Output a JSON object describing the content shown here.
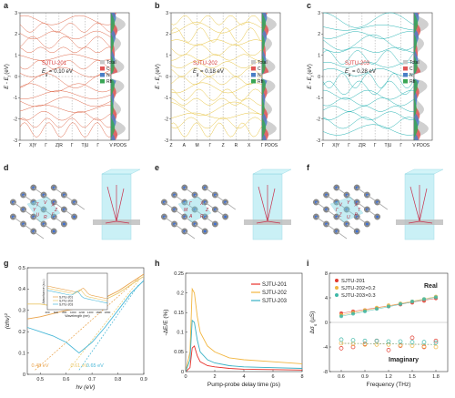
{
  "panels": {
    "a": {
      "label": "a",
      "sample": "SJTU-201",
      "gap": "E",
      "gap_sub": "g",
      "gap_value": " = 0.10 eV",
      "ylabel": "E - E",
      "ylabel_sub": "f",
      "ylabel_unit": " (eV)",
      "kpoints": [
        "Γ",
        "X|Y",
        "Γ",
        "Z|R",
        "Γ",
        "T|U",
        "Γ",
        "V"
      ],
      "pdos": "PDOS",
      "legend": [
        "Total",
        "C",
        "N",
        "Rh"
      ],
      "color": "#e06a4c"
    },
    "b": {
      "label": "b",
      "sample": "SJTU-202",
      "gap": "E",
      "gap_sub": "g",
      "gap_value": " = 0.18 eV",
      "ylabel": "E - E",
      "ylabel_sub": "f",
      "ylabel_unit": " (eV)",
      "kpoints": [
        "Z",
        "A",
        "M",
        "Γ",
        "Z",
        "R",
        "X",
        "Γ"
      ],
      "pdos": "PDOS",
      "legend": [
        "Total",
        "C",
        "N",
        "Rh"
      ],
      "color": "#e8c440"
    },
    "c": {
      "label": "c",
      "sample": "SJTU-203",
      "gap": "E",
      "gap_sub": "g",
      "gap_value": " = 0.28 eV",
      "ylabel": "E - E",
      "ylabel_sub": "f",
      "ylabel_unit": " (eV)",
      "kpoints": [
        "Γ",
        "X|Y",
        "Γ",
        "Z|R",
        "Γ",
        "T|U",
        "Γ",
        "V"
      ],
      "pdos": "PDOS",
      "legend": [
        "Total",
        "C",
        "N",
        "Rh"
      ],
      "color": "#28b4b4"
    },
    "d": {
      "label": "d",
      "kpts": [
        "Z",
        "Γ",
        "R",
        "U",
        "Y",
        "T",
        "V",
        "X"
      ]
    },
    "e": {
      "label": "e",
      "kpts": [
        "Z",
        "R",
        "A",
        "M",
        "Γ",
        "X"
      ]
    },
    "f": {
      "label": "f",
      "kpts": [
        "T",
        "R",
        "U",
        "Z",
        "Γ",
        "V",
        "Y",
        "X"
      ]
    },
    "g": {
      "label": "g",
      "ylabel": "(αhν)",
      "ylabel_sup": "2",
      "xlabel": "hν (eV)",
      "onsets": [
        "0.48 eV",
        "0.61 eV",
        "0.65 eV"
      ],
      "inset_ylabel": "Absorbance (a.u.)",
      "inset_xlabel": "Wavelength (nm)",
      "inset_xticks": [
        "400",
        "600",
        "800",
        "1000",
        "1200",
        "1400",
        "1600",
        "1800"
      ]
    },
    "h": {
      "label": "h",
      "ylabel": "-ΔE/E (%)",
      "xlabel": "Pump-probe delay time (ps)"
    },
    "i": {
      "label": "i",
      "ylabel": "Δσ",
      "ylabel_sub": "s",
      "ylabel_unit": " (µS)",
      "xlabel": "Frequency (THz)",
      "real": "Real",
      "imaginary": "Imaginary"
    }
  },
  "chart_data": [
    {
      "panel": "a",
      "type": "line",
      "title": "",
      "xlabel": "",
      "ylabel": "E - Ef (eV)",
      "ylim": [
        -3,
        3
      ],
      "yticks": [
        -3,
        -2,
        -1,
        0,
        1,
        2,
        3
      ],
      "grid": false
    },
    {
      "panel": "b",
      "type": "line",
      "title": "",
      "xlabel": "",
      "ylabel": "E - Ef (eV)",
      "ylim": [
        -3,
        3
      ],
      "yticks": [
        -3,
        -2,
        -1,
        0,
        1,
        2,
        3
      ],
      "grid": false
    },
    {
      "panel": "c",
      "type": "line",
      "title": "",
      "xlabel": "",
      "ylabel": "E - Ef (eV)",
      "ylim": [
        -3,
        3
      ],
      "yticks": [
        -3,
        -2,
        -1,
        0,
        1,
        2,
        3
      ],
      "grid": false
    },
    {
      "panel": "g",
      "type": "line",
      "title": "",
      "xlabel": "hν (eV)",
      "ylabel": "(αhν)2",
      "xlim": [
        0.45,
        0.9
      ],
      "ylim": [
        0,
        0.5
      ],
      "xticks": [
        0.5,
        0.6,
        0.7,
        0.8,
        0.9
      ],
      "yticks": [
        0.0,
        0.1,
        0.2,
        0.3,
        0.4,
        0.5
      ],
      "series": [
        {
          "name": "SJTU-201",
          "color": "#e9a24a",
          "onset": 0.48,
          "x": [
            0.45,
            0.5,
            0.55,
            0.6,
            0.65,
            0.7,
            0.75,
            0.8,
            0.85,
            0.9
          ],
          "y": [
            0.26,
            0.27,
            0.285,
            0.3,
            0.31,
            0.33,
            0.36,
            0.39,
            0.43,
            0.47
          ]
        },
        {
          "name": "SJTU-202",
          "color": "#e9c86a",
          "onset": 0.61,
          "x": [
            0.45,
            0.5,
            0.55,
            0.6,
            0.65,
            0.7,
            0.75,
            0.8,
            0.85,
            0.9
          ],
          "y": [
            0.33,
            0.33,
            0.32,
            0.32,
            0.32,
            0.33,
            0.35,
            0.38,
            0.42,
            0.46
          ]
        },
        {
          "name": "SJTU-203",
          "color": "#4ab8d8",
          "onset": 0.65,
          "x": [
            0.45,
            0.5,
            0.55,
            0.6,
            0.65,
            0.7,
            0.75,
            0.8,
            0.85,
            0.9
          ],
          "y": [
            0.22,
            0.2,
            0.18,
            0.15,
            0.1,
            0.15,
            0.22,
            0.3,
            0.38,
            0.44
          ]
        }
      ]
    },
    {
      "panel": "h",
      "type": "line",
      "title": "",
      "xlabel": "Pump-probe delay time (ps)",
      "ylabel": "-ΔE/E (%)",
      "xlim": [
        0,
        8
      ],
      "ylim": [
        0,
        0.25
      ],
      "xticks": [
        0,
        2,
        4,
        6,
        8
      ],
      "yticks": [
        0.0,
        0.05,
        0.1,
        0.15,
        0.2,
        0.25
      ],
      "legend": "top-right",
      "series": [
        {
          "name": "SJTU-201",
          "color": "#e8312a",
          "x": [
            0,
            0.3,
            0.45,
            0.6,
            0.8,
            1.0,
            1.5,
            2,
            3,
            4,
            6,
            8
          ],
          "y": [
            0,
            0.01,
            0.06,
            0.065,
            0.04,
            0.025,
            0.015,
            0.012,
            0.008,
            0.006,
            0.005,
            0.004
          ]
        },
        {
          "name": "SJTU-202",
          "color": "#f2b640",
          "x": [
            0,
            0.3,
            0.45,
            0.6,
            0.8,
            1.0,
            1.5,
            2,
            3,
            4,
            6,
            8
          ],
          "y": [
            0,
            0.05,
            0.21,
            0.2,
            0.14,
            0.1,
            0.065,
            0.05,
            0.035,
            0.03,
            0.025,
            0.02
          ]
        },
        {
          "name": "SJTU-203",
          "color": "#37b1c5",
          "x": [
            0,
            0.3,
            0.45,
            0.6,
            0.8,
            1.0,
            1.5,
            2,
            3,
            4,
            6,
            8
          ],
          "y": [
            0,
            0.03,
            0.13,
            0.125,
            0.08,
            0.05,
            0.03,
            0.022,
            0.015,
            0.012,
            0.01,
            0.008
          ]
        }
      ]
    },
    {
      "panel": "i",
      "type": "scatter",
      "title": "",
      "xlabel": "Frequency (THz)",
      "ylabel": "Δσs (µS)",
      "xlim": [
        0.45,
        1.95
      ],
      "ylim": [
        -8,
        8
      ],
      "xticks": [
        0.6,
        0.9,
        1.2,
        1.5,
        1.8
      ],
      "yticks": [
        -8,
        -4,
        0,
        4,
        8
      ],
      "legend": "top-left",
      "series": [
        {
          "name": "SJTU-201",
          "color": "#e23a2e",
          "x": [
            0.6,
            0.75,
            0.9,
            1.05,
            1.2,
            1.35,
            1.5,
            1.65,
            1.8
          ],
          "real": [
            1.5,
            1.8,
            2.0,
            2.3,
            2.6,
            2.9,
            3.2,
            3.5,
            3.9
          ],
          "imag": [
            -4.2,
            -4.0,
            -3.5,
            -3.0,
            -4.5,
            -3.8,
            -2.5,
            -4.0,
            -3.0
          ]
        },
        {
          "name": "SJTU-202×0.2",
          "color": "#f0b540",
          "x": [
            0.6,
            0.75,
            0.9,
            1.05,
            1.2,
            1.35,
            1.5,
            1.65,
            1.8
          ],
          "real": [
            1.2,
            1.6,
            2.0,
            2.4,
            2.8,
            3.1,
            3.4,
            3.8,
            4.2
          ],
          "imag": [
            -3.4,
            -3.5,
            -3.6,
            -3.6,
            -3.6,
            -3.7,
            -3.8,
            -3.9,
            -4.0
          ]
        },
        {
          "name": "SJTU-203×0.3",
          "color": "#3fb8a8",
          "x": [
            0.6,
            0.75,
            0.9,
            1.05,
            1.2,
            1.35,
            1.5,
            1.65,
            1.8
          ],
          "real": [
            1.0,
            1.4,
            1.8,
            2.2,
            2.6,
            3.0,
            3.4,
            3.8,
            4.1
          ],
          "imag": [
            -2.8,
            -2.9,
            -3.0,
            -3.0,
            -3.1,
            -3.1,
            -3.2,
            -3.2,
            -3.3
          ]
        }
      ]
    }
  ]
}
